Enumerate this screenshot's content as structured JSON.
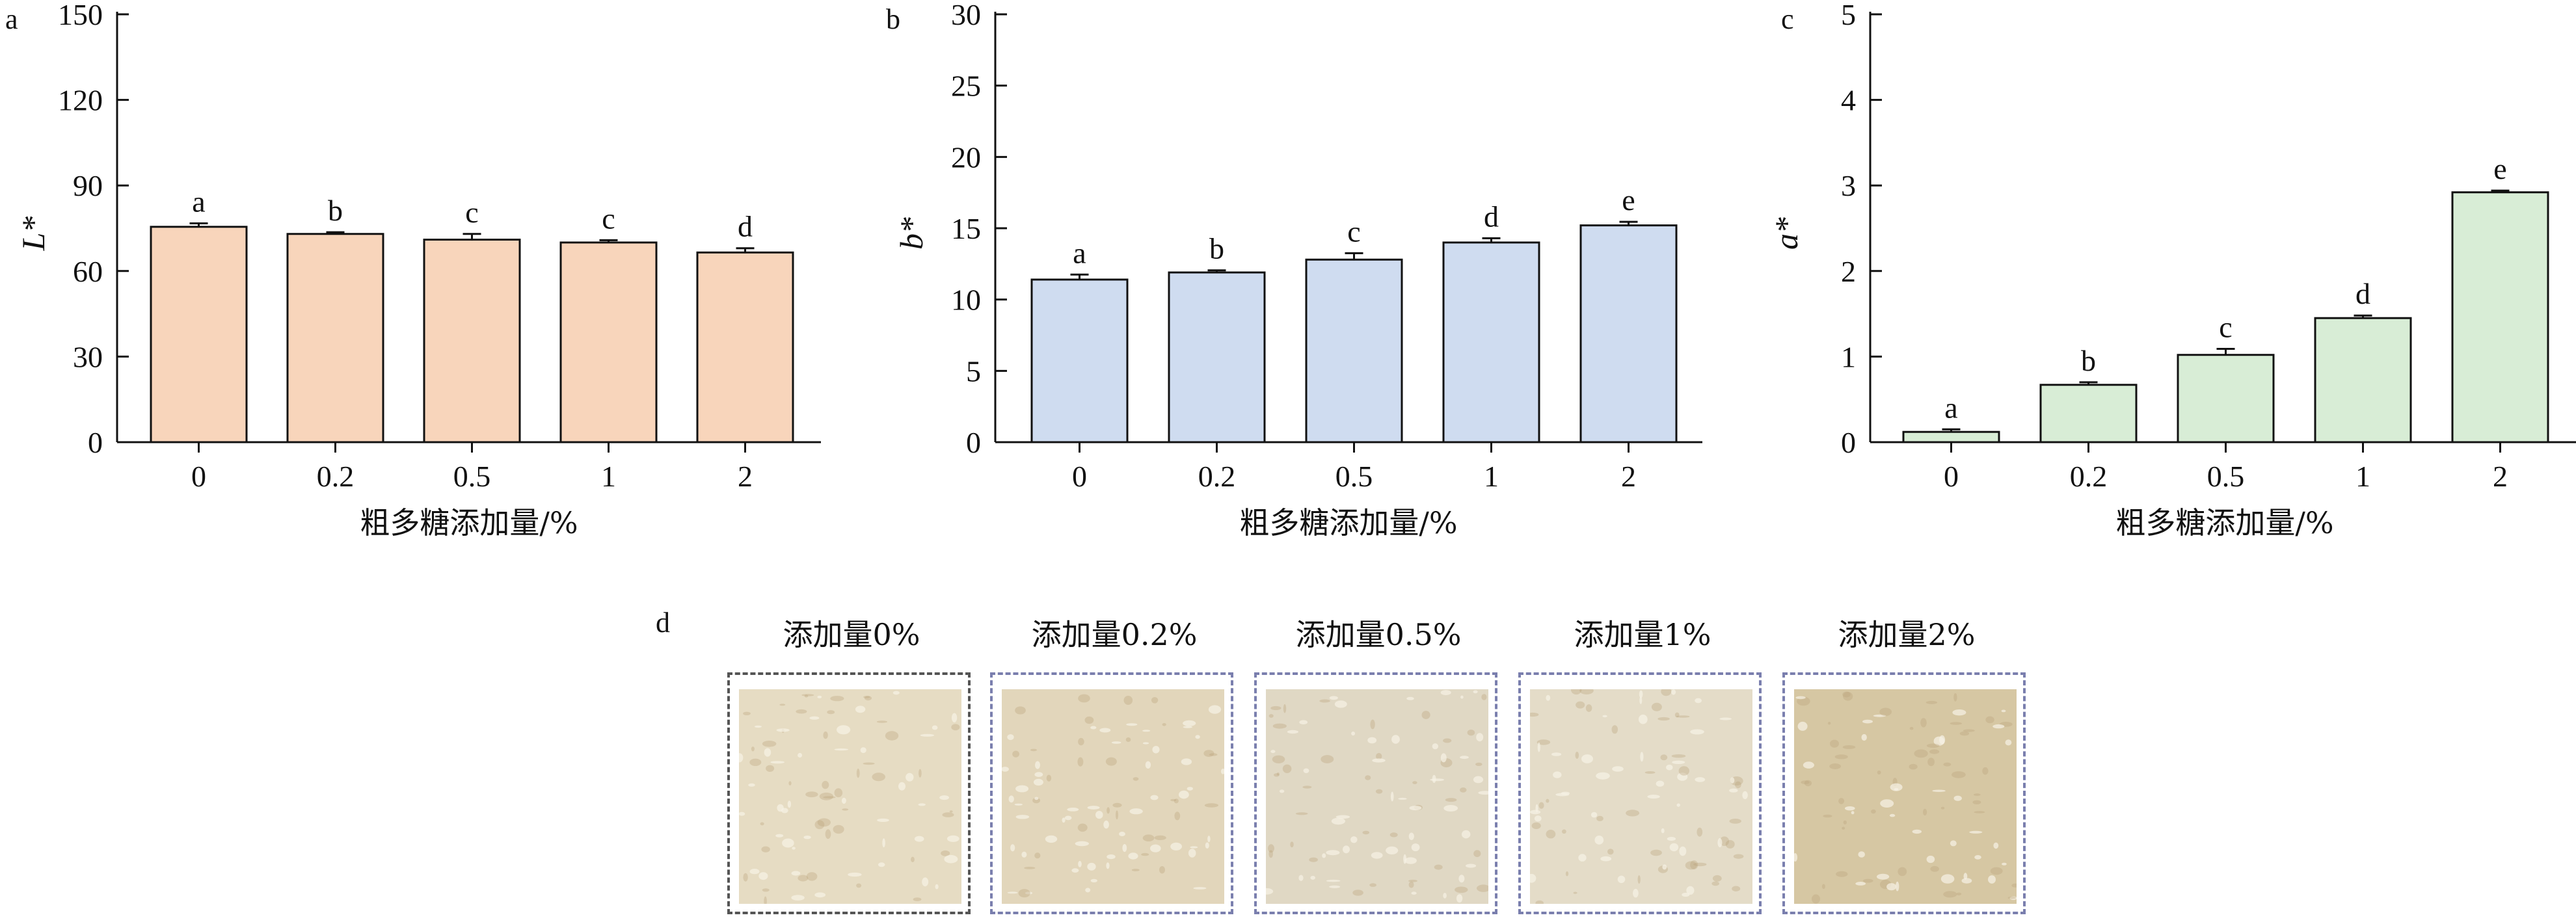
{
  "chart_data": [
    {
      "panel": "a",
      "type": "bar",
      "xlabel": "粗多糖添加量/%",
      "ylabel": "L*",
      "categories": [
        "0",
        "0.2",
        "0.5",
        "1",
        "2"
      ],
      "values": [
        75.5,
        73,
        71,
        70,
        66.5
      ],
      "errors": [
        1.2,
        0.6,
        2.0,
        0.8,
        1.5
      ],
      "significance": [
        "a",
        "b",
        "c",
        "c",
        "d"
      ],
      "ylim": [
        0,
        150
      ],
      "yticks": [
        "0",
        "30",
        "60",
        "90",
        "120",
        "150"
      ],
      "color": "#f8d5bb",
      "grid": false
    },
    {
      "panel": "b",
      "type": "bar",
      "xlabel": "粗多糖添加量/%",
      "ylabel": "b*",
      "categories": [
        "0",
        "0.2",
        "0.5",
        "1",
        "2"
      ],
      "values": [
        11.4,
        11.9,
        12.8,
        14,
        15.2
      ],
      "errors": [
        0.35,
        0.15,
        0.45,
        0.3,
        0.25
      ],
      "significance": [
        "a",
        "b",
        "c",
        "d",
        "e"
      ],
      "ylim": [
        0,
        30
      ],
      "yticks": [
        "0",
        "5",
        "10",
        "15",
        "20",
        "25",
        "30"
      ],
      "color": "#cfdcf0",
      "grid": false
    },
    {
      "panel": "c",
      "type": "bar",
      "xlabel": "粗多糖添加量/%",
      "ylabel": "a*",
      "categories": [
        "0",
        "0.2",
        "0.5",
        "1",
        "2"
      ],
      "values": [
        0.12,
        0.67,
        1.02,
        1.45,
        2.92
      ],
      "errors": [
        0.03,
        0.03,
        0.07,
        0.03,
        0.02
      ],
      "significance": [
        "a",
        "b",
        "c",
        "d",
        "e"
      ],
      "ylim": [
        0,
        5
      ],
      "yticks": [
        "0",
        "1",
        "2",
        "3",
        "4",
        "5"
      ],
      "color": "#d8edd6",
      "grid": false
    }
  ],
  "photo_panel": {
    "letter": "d",
    "items": [
      {
        "label": "添加量0%",
        "tone": "#e6dcc3",
        "frame": "#555555"
      },
      {
        "label": "添加量0.2%",
        "tone": "#e2d6bb",
        "frame": "#7a7fae"
      },
      {
        "label": "添加量0.5%",
        "tone": "#e0d8c4",
        "frame": "#7a7fae"
      },
      {
        "label": "添加量1%",
        "tone": "#e4dcc8",
        "frame": "#7a7fae"
      },
      {
        "label": "添加量2%",
        "tone": "#d6c7a3",
        "frame": "#7a7fae"
      }
    ]
  }
}
